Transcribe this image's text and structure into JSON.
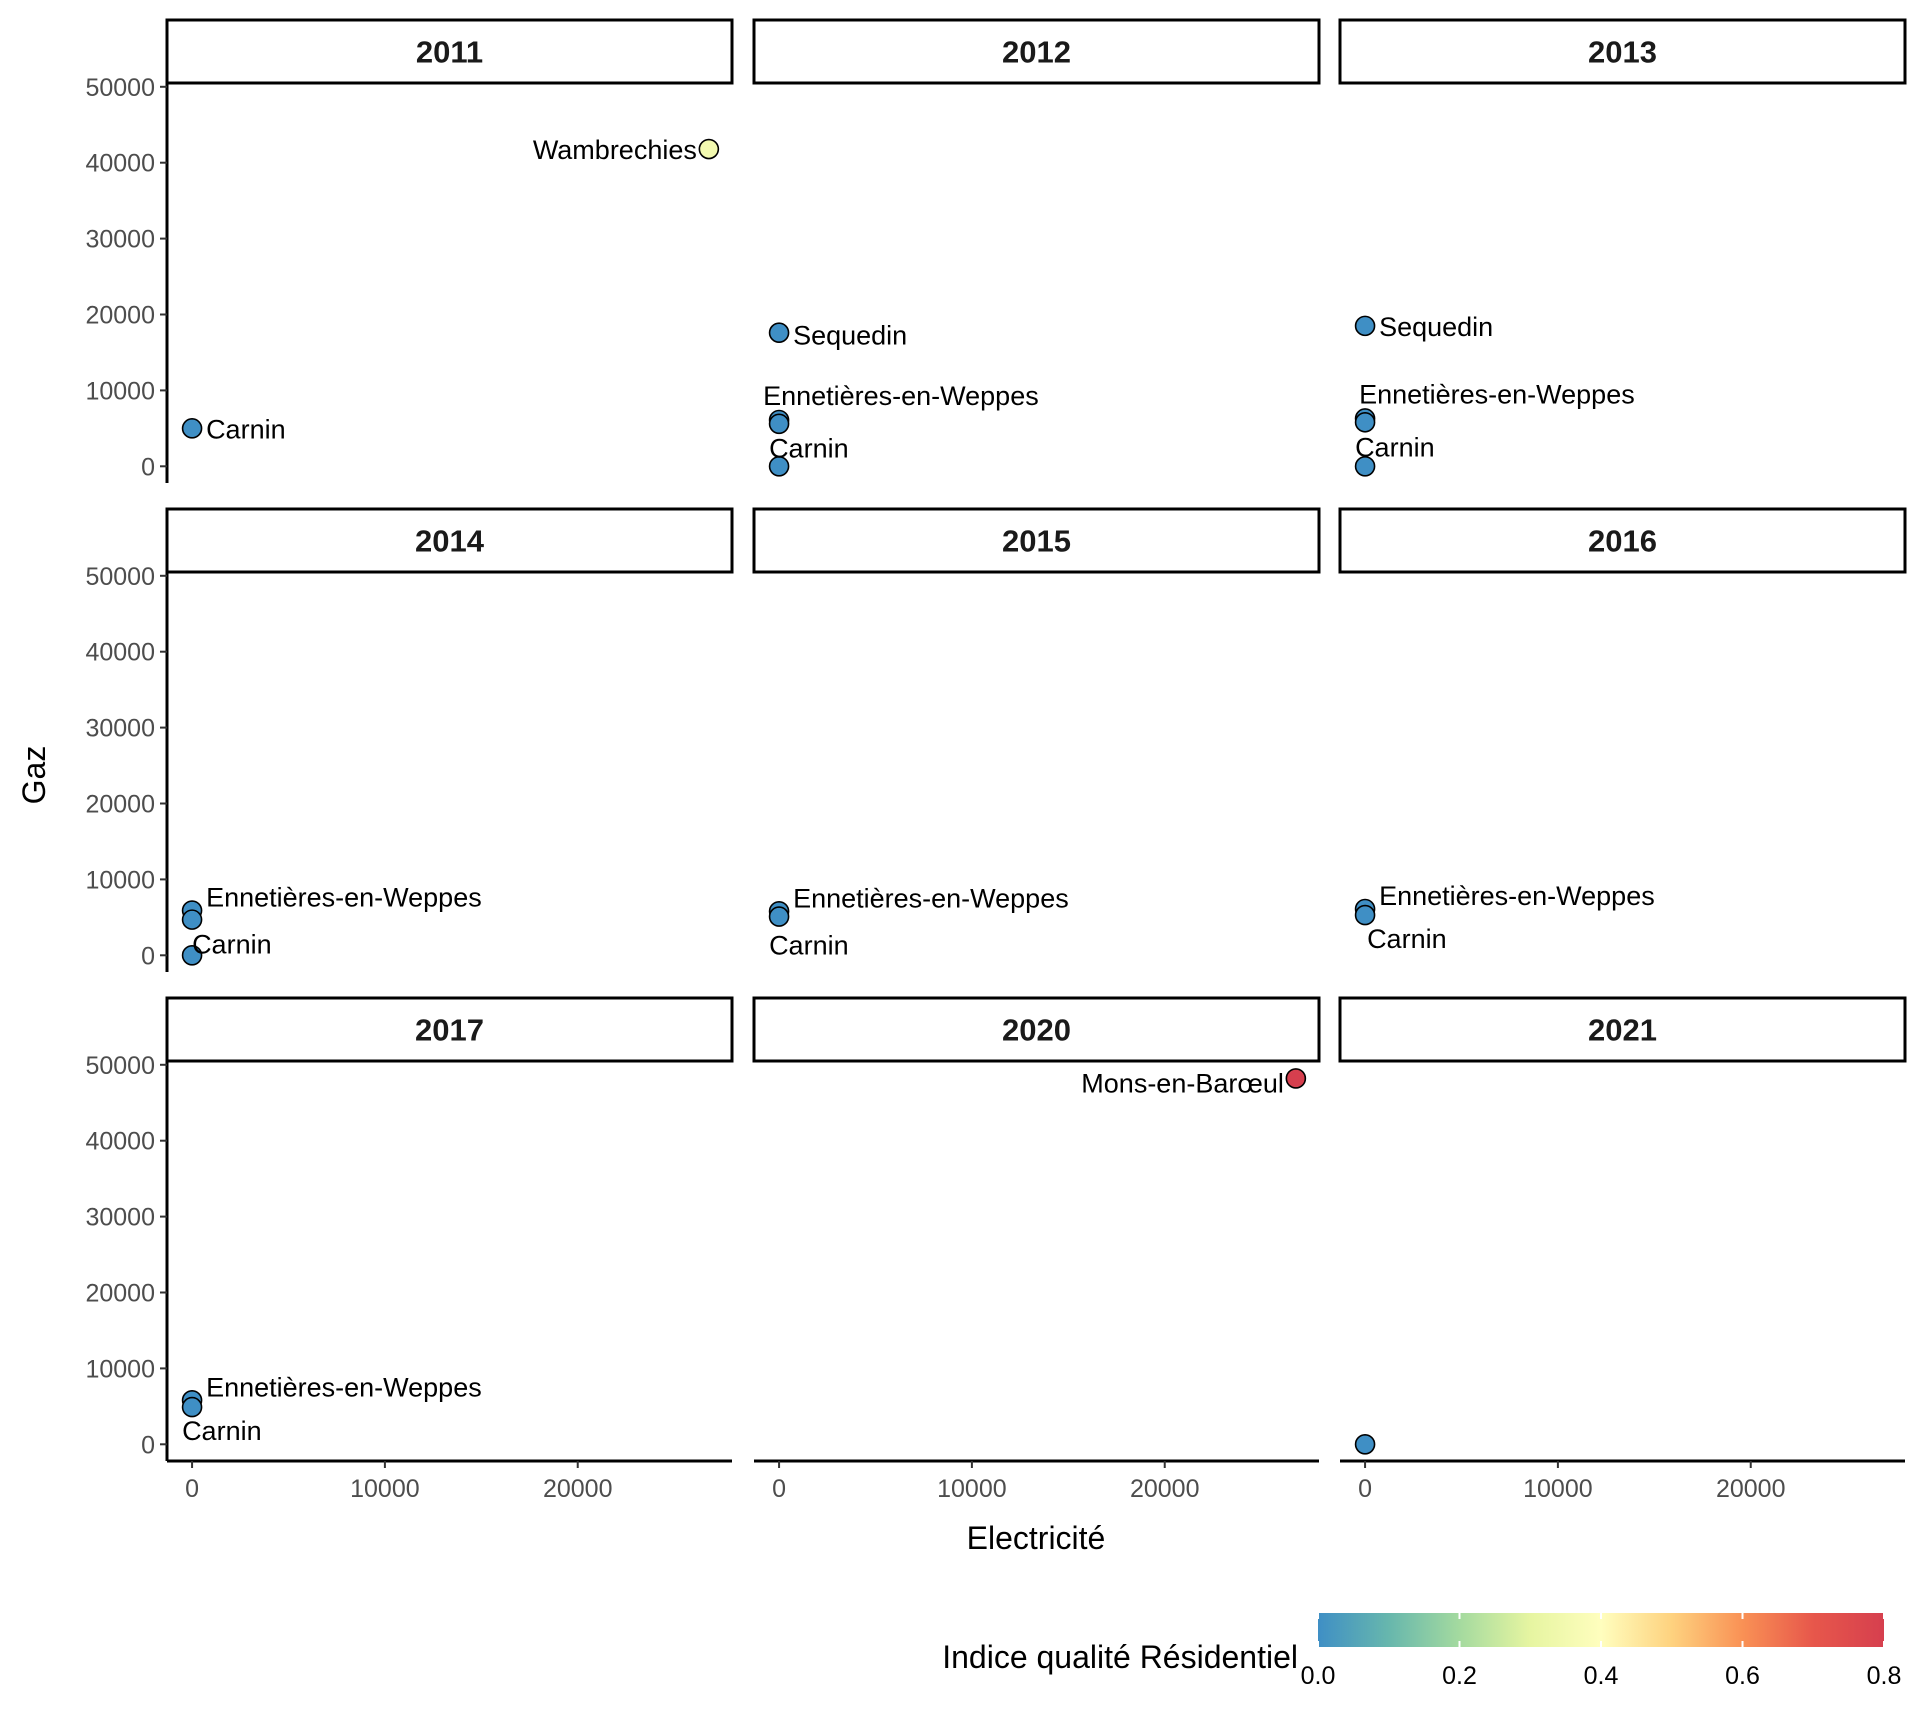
{
  "chart_data": {
    "type": "scatter",
    "xlabel": "Electricité",
    "ylabel": "Gaz",
    "xlim": [
      -1300,
      28000
    ],
    "ylim": [
      -2200,
      50500
    ],
    "x_ticks": [
      0,
      10000,
      20000
    ],
    "y_ticks": [
      0,
      10000,
      20000,
      30000,
      40000,
      50000
    ],
    "grid": false,
    "legend": {
      "title": "Indice qualité Résidentiel",
      "type": "colorbar",
      "placement": "bottom-right",
      "range": [
        0,
        0.8
      ],
      "ticks": [
        "0.0",
        "0.2",
        "0.4",
        "0.6",
        "0.8"
      ],
      "palette": [
        "#3f8fc5",
        "#67b7ad",
        "#a4da9f",
        "#e6f5a1",
        "#fffebe",
        "#fed27f",
        "#f99155",
        "#e7574b",
        "#d63f4e"
      ]
    },
    "facets": [
      {
        "strip": "2011",
        "points": [
          {
            "x": 0,
            "y": 5000,
            "value": 0.0,
            "label": "Carnin"
          },
          {
            "x": 26800,
            "y": 41800,
            "value": 0.35,
            "label": "Wambrechies"
          }
        ]
      },
      {
        "strip": "2012",
        "points": [
          {
            "x": 0,
            "y": 17600,
            "value": 0.0,
            "label": "Sequedin"
          },
          {
            "x": 0,
            "y": 6100,
            "value": 0.0,
            "label": "Ennetières-en-Weppes"
          },
          {
            "x": 0,
            "y": 5600,
            "value": 0.0,
            "label": ""
          },
          {
            "x": 0,
            "y": 0,
            "value": 0.0,
            "label": "Carnin"
          }
        ]
      },
      {
        "strip": "2013",
        "points": [
          {
            "x": 0,
            "y": 18500,
            "value": 0.0,
            "label": "Sequedin"
          },
          {
            "x": 0,
            "y": 6300,
            "value": 0.0,
            "label": "Ennetières-en-Weppes"
          },
          {
            "x": 0,
            "y": 5800,
            "value": 0.0,
            "label": ""
          },
          {
            "x": 0,
            "y": 0,
            "value": 0.0,
            "label": "Carnin"
          }
        ]
      },
      {
        "strip": "2014",
        "points": [
          {
            "x": 0,
            "y": 5900,
            "value": 0.0,
            "label": "Ennetières-en-Weppes"
          },
          {
            "x": 0,
            "y": 4700,
            "value": 0.0,
            "label": ""
          },
          {
            "x": 0,
            "y": 0,
            "value": 0.0,
            "label": "Carnin"
          }
        ]
      },
      {
        "strip": "2015",
        "points": [
          {
            "x": 0,
            "y": 5800,
            "value": 0.0,
            "label": "Ennetières-en-Weppes"
          },
          {
            "x": 0,
            "y": 5100,
            "value": 0.0,
            "label": "Carnin"
          }
        ]
      },
      {
        "strip": "2016",
        "points": [
          {
            "x": 0,
            "y": 6100,
            "value": 0.0,
            "label": "Ennetières-en-Weppes"
          },
          {
            "x": 0,
            "y": 5300,
            "value": 0.0,
            "label": "Carnin"
          }
        ]
      },
      {
        "strip": "2017",
        "points": [
          {
            "x": 0,
            "y": 5800,
            "value": 0.0,
            "label": "Ennetières-en-Weppes"
          },
          {
            "x": 0,
            "y": 4900,
            "value": 0.0,
            "label": "Carnin"
          }
        ]
      },
      {
        "strip": "2020",
        "points": [
          {
            "x": 26800,
            "y": 48200,
            "value": 0.8,
            "label": "Mons-en-Barœul"
          }
        ]
      },
      {
        "strip": "2021",
        "points": [
          {
            "x": 0,
            "y": 0,
            "value": 0.0,
            "label": ""
          }
        ]
      }
    ]
  }
}
